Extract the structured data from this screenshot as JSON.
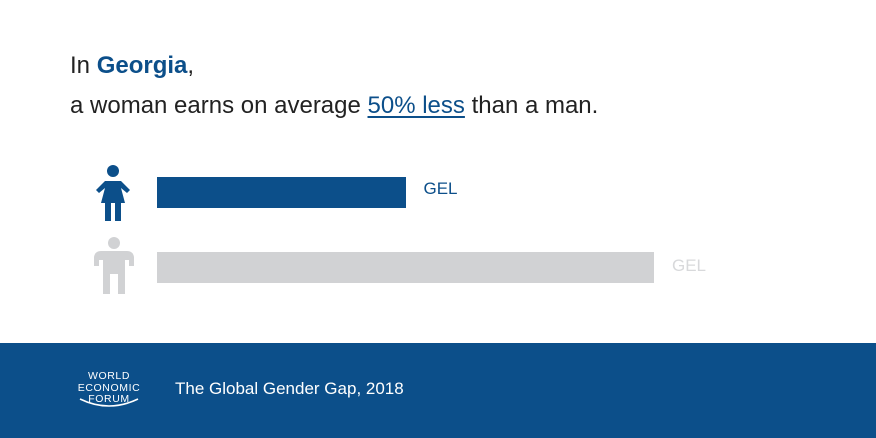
{
  "headline": {
    "prefix": "In ",
    "country": "Georgia",
    "comma": ",",
    "line2_prefix": "a woman earns on average ",
    "stat": "50% less",
    "line2_suffix": " than a man."
  },
  "chart_data": {
    "type": "bar",
    "orientation": "horizontal",
    "categories": [
      "woman",
      "man"
    ],
    "values": [
      50,
      100
    ],
    "series": [
      {
        "name": "woman",
        "value": 50,
        "label": "GEL",
        "color": "#0c4f8a"
      },
      {
        "name": "man",
        "value": 100,
        "label": "GEL",
        "color": "#d1d2d4"
      }
    ],
    "xlim": [
      0,
      100
    ]
  },
  "icons": {
    "woman": "woman-icon",
    "man": "man-icon"
  },
  "colors": {
    "accent": "#0c4f8a",
    "muted": "#d1d2d4",
    "footer_bg": "#0c4f8a"
  },
  "footer": {
    "logo_lines": [
      "WORLD",
      "ECONOMIC",
      "FORUM"
    ],
    "source": "The Global Gender Gap, 2018"
  }
}
